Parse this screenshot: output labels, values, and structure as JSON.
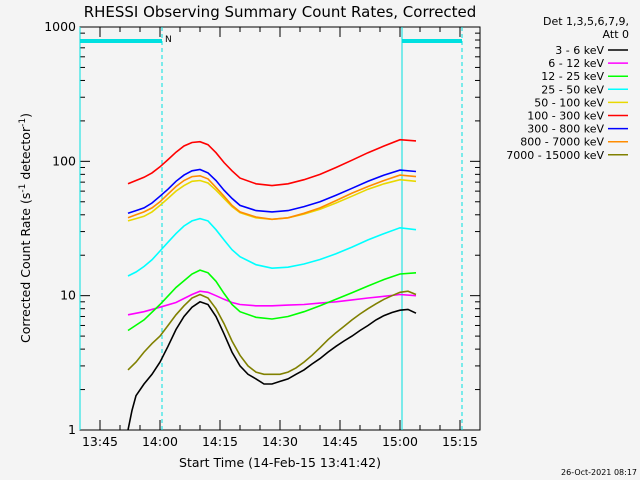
{
  "chart_data": {
    "type": "line",
    "title": "RHESSI Observing Summary Count Rates, Corrected",
    "xlabel": "Start Time (14-Feb-15 13:41:42)",
    "ylabel_parts": [
      "Corrected Count Rate (s",
      "-1",
      " detector",
      "-1",
      ")"
    ],
    "y_scale": "log",
    "ylim": [
      1,
      1000
    ],
    "y_ticks": [
      {
        "value": 1,
        "label": "1"
      },
      {
        "value": 10,
        "label": "10"
      },
      {
        "value": 100,
        "label": "100"
      },
      {
        "value": 1000,
        "label": "1000"
      }
    ],
    "x_unit": "minutes since 13:40",
    "xlim": [
      0,
      100
    ],
    "x_ticks": [
      {
        "value": 5,
        "label": "13:45"
      },
      {
        "value": 20,
        "label": "14:00"
      },
      {
        "value": 35,
        "label": "14:15"
      },
      {
        "value": 50,
        "label": "14:30"
      },
      {
        "value": 65,
        "label": "14:45"
      },
      {
        "value": 80,
        "label": "15:00"
      },
      {
        "value": 95,
        "label": "15:15"
      }
    ],
    "legend_header": [
      "Det 1,3,5,6,7,9,",
      "Att 0"
    ],
    "night_intervals": [
      [
        0,
        20.5
      ],
      [
        80.5,
        95.5
      ]
    ],
    "night_label": "N",
    "night_color": "#00e0e0",
    "series": [
      {
        "name": "3 - 6 keV",
        "color": "#000000",
        "x": [
          12,
          13,
          14,
          16,
          18,
          20,
          22,
          24,
          26,
          28,
          30,
          32,
          34,
          36,
          38,
          40,
          42,
          44,
          46,
          48,
          50,
          52,
          54,
          56,
          58,
          60,
          62,
          64,
          66,
          68,
          70,
          72,
          74,
          76,
          78,
          80,
          82,
          84
        ],
        "y": [
          1,
          1.4,
          1.8,
          2.2,
          2.6,
          3.2,
          4.2,
          5.6,
          7.0,
          8.2,
          9.0,
          8.6,
          7.0,
          5.2,
          3.8,
          3.0,
          2.6,
          2.4,
          2.2,
          2.2,
          2.3,
          2.4,
          2.6,
          2.8,
          3.1,
          3.4,
          3.8,
          4.2,
          4.6,
          5.0,
          5.5,
          6.0,
          6.6,
          7.1,
          7.5,
          7.8,
          7.9,
          7.4
        ]
      },
      {
        "name": "6 - 12 keV",
        "color": "#ff00ff",
        "x": [
          12,
          16,
          20,
          24,
          28,
          30,
          32,
          34,
          36,
          38,
          40,
          44,
          48,
          52,
          56,
          60,
          64,
          68,
          72,
          76,
          80,
          84
        ],
        "y": [
          7.2,
          7.6,
          8.2,
          8.9,
          10.2,
          10.8,
          10.6,
          10.0,
          9.4,
          8.9,
          8.6,
          8.4,
          8.4,
          8.5,
          8.6,
          8.8,
          9.0,
          9.3,
          9.6,
          9.9,
          10.2,
          10.0
        ]
      },
      {
        "name": "12 - 25 keV",
        "color": "#00ff00",
        "x": [
          12,
          16,
          20,
          24,
          28,
          30,
          32,
          34,
          36,
          38,
          40,
          44,
          48,
          52,
          56,
          60,
          64,
          68,
          72,
          76,
          80,
          84
        ],
        "y": [
          5.5,
          6.6,
          8.6,
          11.5,
          14.5,
          15.5,
          14.8,
          12.8,
          10.4,
          8.6,
          7.6,
          6.9,
          6.7,
          7.0,
          7.6,
          8.4,
          9.4,
          10.5,
          11.8,
          13.2,
          14.5,
          14.8
        ]
      },
      {
        "name": "25 - 50 keV",
        "color": "#00ffff",
        "x": [
          12,
          14,
          16,
          18,
          20,
          22,
          24,
          26,
          28,
          30,
          32,
          34,
          36,
          38,
          40,
          44,
          48,
          52,
          56,
          60,
          64,
          68,
          72,
          76,
          80,
          84
        ],
        "y": [
          14,
          15,
          16.5,
          18.5,
          21.5,
          25,
          29,
          33,
          36,
          37.5,
          36,
          31,
          26,
          22,
          19.5,
          17,
          16,
          16.3,
          17.2,
          18.6,
          20.5,
          23,
          26,
          29,
          32,
          31
        ]
      },
      {
        "name": "50 - 100 keV",
        "color": "#e8d800",
        "x": [
          12,
          14,
          16,
          18,
          20,
          22,
          24,
          26,
          28,
          30,
          32,
          34,
          36,
          38,
          40,
          44,
          48,
          52,
          56,
          60,
          64,
          68,
          72,
          76,
          80,
          84
        ],
        "y": [
          36,
          37.5,
          39,
          42,
          47,
          53,
          60,
          66,
          71,
          72,
          69,
          61,
          53,
          46,
          41.5,
          38,
          37,
          38,
          40.5,
          44,
          49,
          55,
          62,
          68,
          73,
          71
        ]
      },
      {
        "name": "100 - 300 keV",
        "color": "#ff0000",
        "x": [
          12,
          14,
          16,
          18,
          20,
          22,
          24,
          26,
          28,
          30,
          32,
          34,
          36,
          38,
          40,
          44,
          48,
          52,
          56,
          60,
          64,
          68,
          72,
          76,
          80,
          84
        ],
        "y": [
          68,
          72,
          76,
          82,
          91,
          103,
          117,
          130,
          138,
          140,
          133,
          116,
          98,
          85,
          75,
          68,
          66,
          68,
          73,
          80,
          90,
          102,
          116,
          130,
          145,
          142
        ]
      },
      {
        "name": "300 - 800 keV",
        "color": "#0000ff",
        "x": [
          12,
          14,
          16,
          18,
          20,
          22,
          24,
          26,
          28,
          30,
          32,
          34,
          36,
          38,
          40,
          44,
          48,
          52,
          56,
          60,
          64,
          68,
          72,
          76,
          80,
          84
        ],
        "y": [
          41,
          43,
          45,
          49,
          55,
          62,
          71,
          79,
          85,
          87,
          82,
          72,
          61,
          53,
          47,
          43,
          42,
          43,
          46,
          50,
          56,
          63,
          71,
          79,
          86,
          84
        ]
      },
      {
        "name": "800 - 7000 keV",
        "color": "#ff8c00",
        "x": [
          12,
          14,
          16,
          18,
          20,
          22,
          24,
          26,
          28,
          30,
          32,
          34,
          36,
          38,
          40,
          44,
          48,
          52,
          56,
          60,
          64,
          68,
          72,
          76,
          80,
          84
        ],
        "y": [
          38,
          40,
          42,
          45,
          50,
          57,
          65,
          72,
          77,
          78,
          74,
          64,
          55,
          47,
          42,
          38.5,
          37,
          38,
          41,
          45,
          51,
          58,
          65,
          72,
          79,
          77
        ]
      },
      {
        "name": "7000 - 15000 keV",
        "color": "#808000",
        "x": [
          12,
          14,
          16,
          18,
          20,
          22,
          24,
          26,
          28,
          30,
          32,
          34,
          36,
          38,
          40,
          42,
          44,
          46,
          48,
          50,
          52,
          54,
          56,
          58,
          60,
          62,
          64,
          66,
          68,
          70,
          72,
          74,
          76,
          78,
          80,
          82,
          84
        ],
        "y": [
          2.8,
          3.2,
          3.8,
          4.4,
          5.0,
          6.0,
          7.2,
          8.4,
          9.6,
          10.2,
          9.6,
          8.0,
          6.2,
          4.6,
          3.6,
          3.0,
          2.7,
          2.6,
          2.6,
          2.6,
          2.7,
          2.9,
          3.2,
          3.6,
          4.1,
          4.7,
          5.3,
          5.9,
          6.6,
          7.3,
          8.0,
          8.7,
          9.4,
          10.0,
          10.6,
          10.8,
          10.2
        ]
      }
    ]
  },
  "footer": {
    "timestamp": "26-Oct-2021 08:17"
  }
}
